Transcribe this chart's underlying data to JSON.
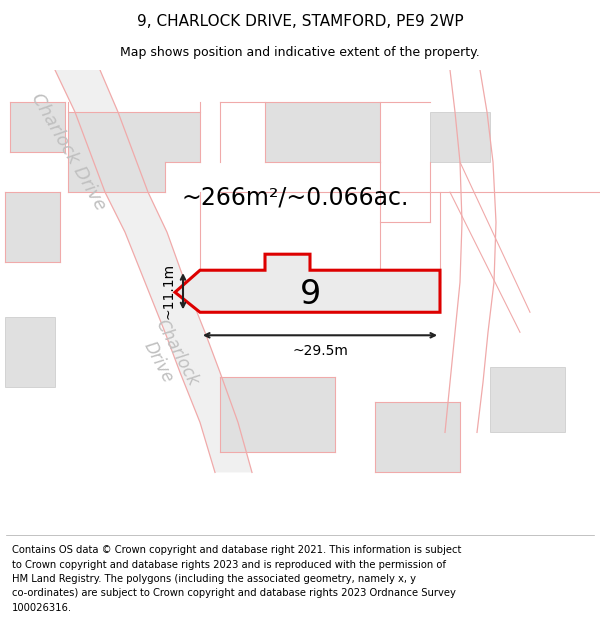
{
  "title": "9, CHARLOCK DRIVE, STAMFORD, PE9 2WP",
  "subtitle": "Map shows position and indicative extent of the property.",
  "footer_lines": [
    "Contains OS data © Crown copyright and database right 2021. This information is subject",
    "to Crown copyright and database rights 2023 and is reproduced with the permission of",
    "HM Land Registry. The polygons (including the associated geometry, namely x, y",
    "co-ordinates) are subject to Crown copyright and database rights 2023 Ordnance Survey",
    "100026316."
  ],
  "area_text": "~266m²/~0.066ac.",
  "width_label": "~29.5m",
  "height_label": "~11.1m",
  "plot_number": "9",
  "bg_color": "#ffffff",
  "block_color": "#e0e0e0",
  "plot_outline_color": "#dd0000",
  "plot_fill_color": "#ebebeb",
  "bg_line_color": "#f0aaaa",
  "gray_line_color": "#c8c8c8",
  "road_fill_color": "#f0f0f0",
  "arrow_color": "#222222",
  "title_fontsize": 11,
  "subtitle_fontsize": 9,
  "area_fontsize": 17,
  "plot_num_fontsize": 24,
  "footer_fontsize": 7.2,
  "road_label_color": "#c0c0c0",
  "road_label_fontsize": 13
}
